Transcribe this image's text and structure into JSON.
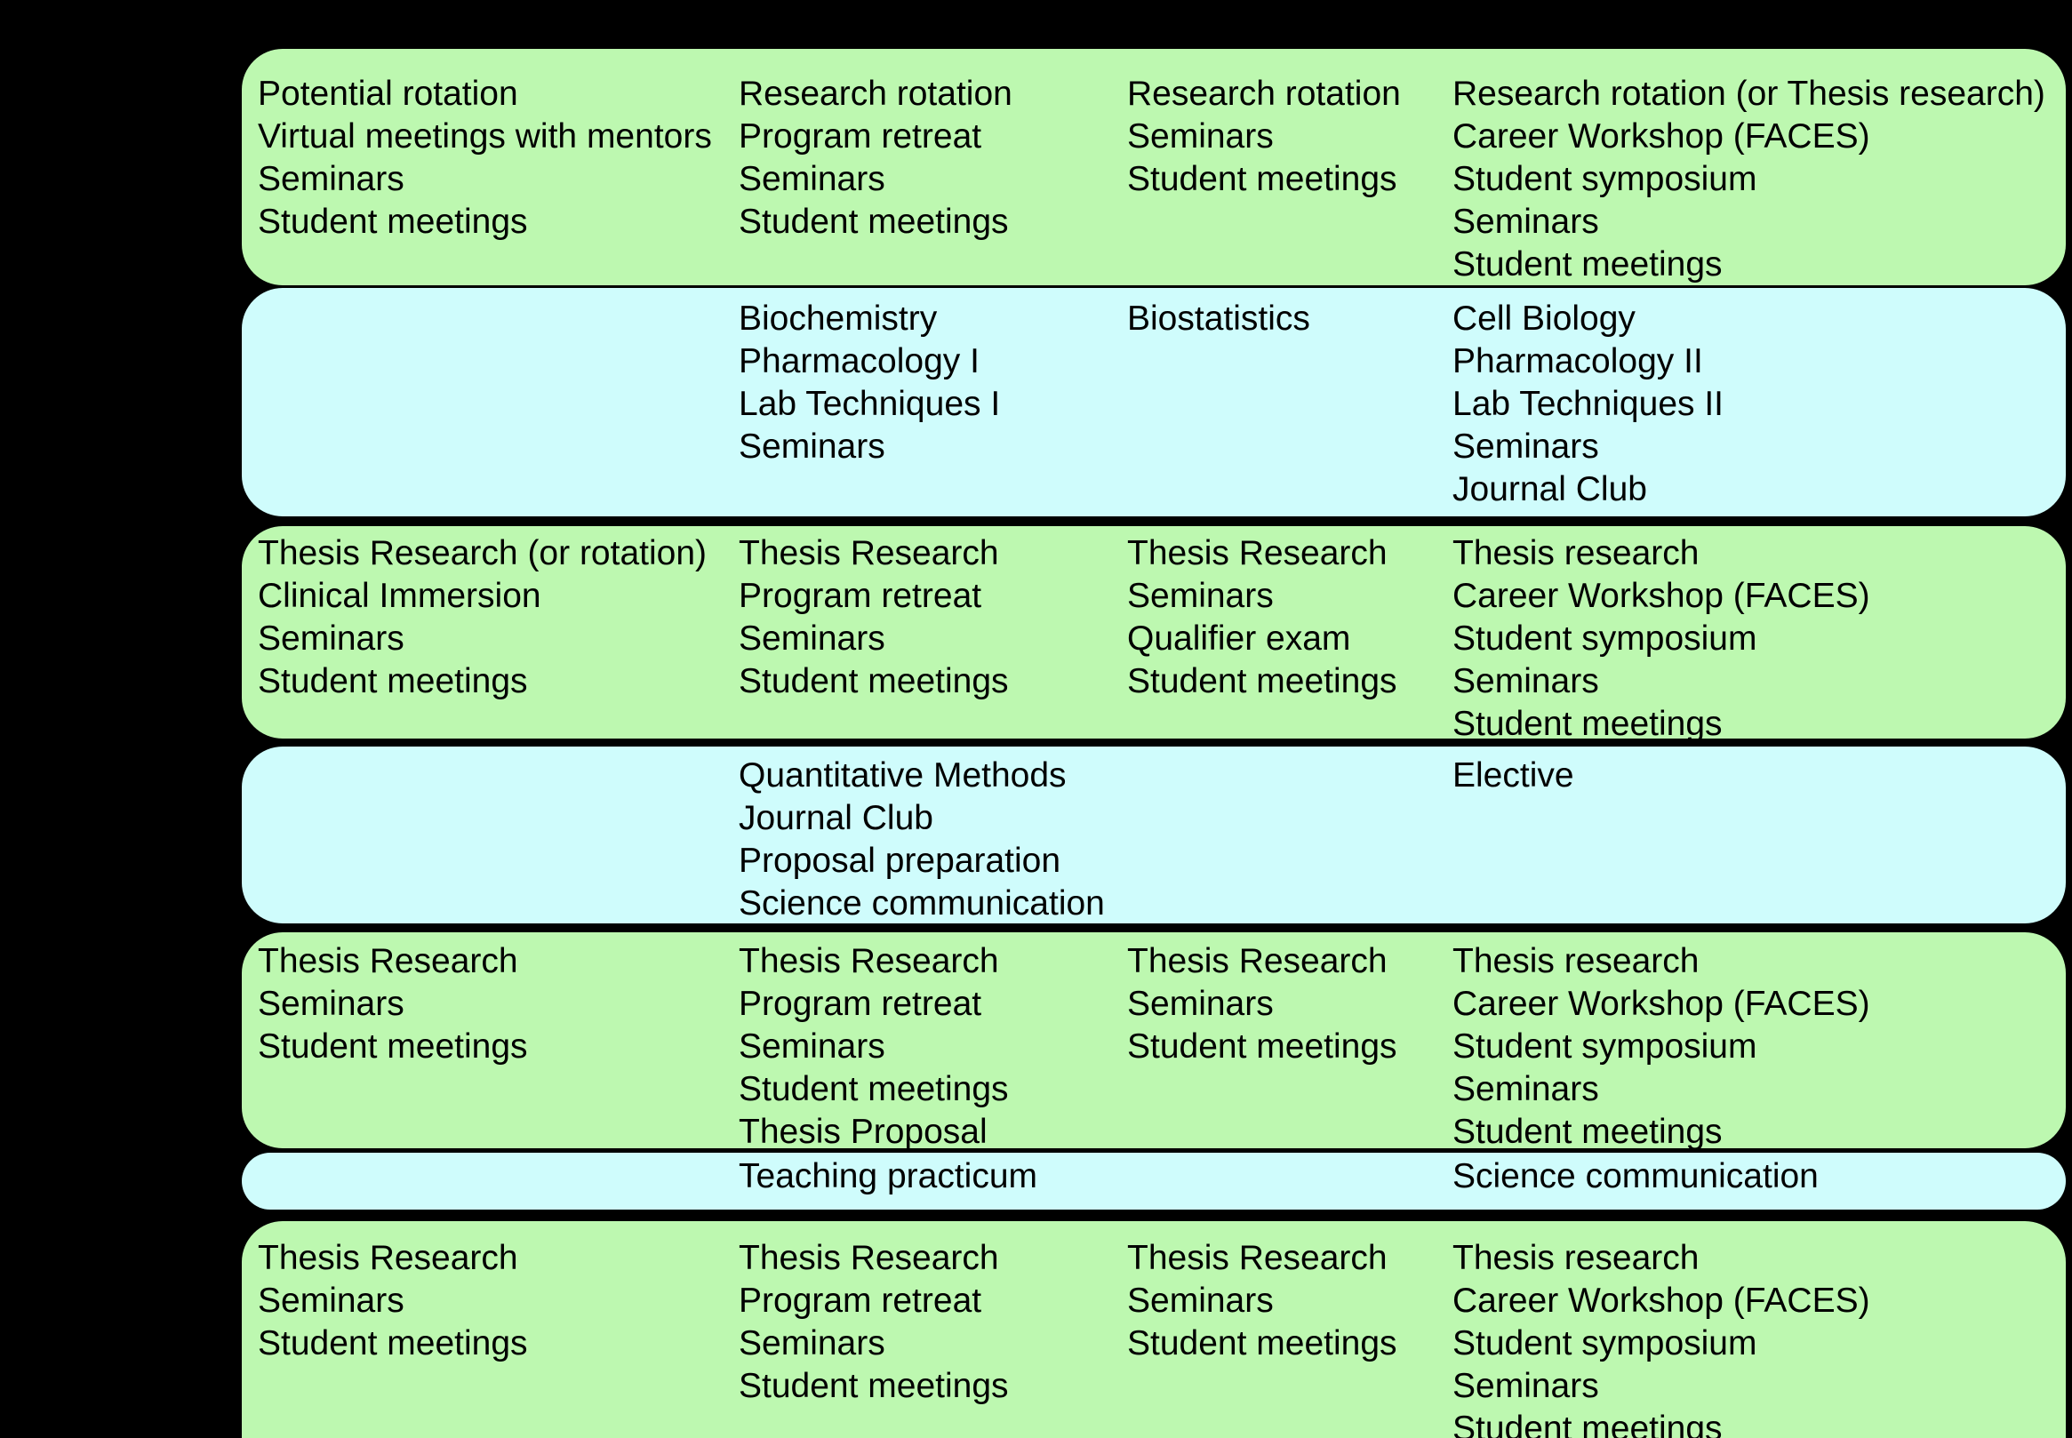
{
  "colors": {
    "background": "#000000",
    "activities_green": "#bdf8b0",
    "courses_cyan": "#cffcfc",
    "text": "#000000"
  },
  "schedule": {
    "rows": [
      {
        "type": "activities",
        "cells": {
          "c1": "Potential rotation\nVirtual meetings with mentors\nSeminars\nStudent meetings",
          "c2": "Research rotation\nProgram retreat\nSeminars\nStudent meetings",
          "c3": "Research rotation\nSeminars\nStudent meetings",
          "c4": "Research rotation (or Thesis research)\nCareer Workshop (FACES)\nStudent symposium\nSeminars\nStudent meetings"
        }
      },
      {
        "type": "courses",
        "cells": {
          "c2": "Biochemistry\nPharmacology I\nLab Techniques I\nSeminars",
          "c3": "Biostatistics",
          "c4": "Cell Biology\nPharmacology II\nLab Techniques II\nSeminars\nJournal Club"
        }
      },
      {
        "type": "activities",
        "cells": {
          "c1": "Thesis Research (or rotation)\nClinical Immersion\nSeminars\nStudent meetings",
          "c2": "Thesis Research\nProgram retreat\nSeminars\nStudent meetings",
          "c3": "Thesis Research\nSeminars\nQualifier exam\nStudent meetings",
          "c4": "Thesis research\nCareer Workshop (FACES)\nStudent symposium\nSeminars\nStudent meetings"
        }
      },
      {
        "type": "courses",
        "cells": {
          "c2": "Quantitative Methods\nJournal Club\nProposal preparation\nScience communication",
          "c4": "Elective"
        }
      },
      {
        "type": "activities",
        "cells": {
          "c1": "Thesis Research\nSeminars\nStudent meetings",
          "c2": "Thesis Research\nProgram retreat\nSeminars\nStudent meetings\nThesis Proposal",
          "c3": "Thesis Research\nSeminars\nStudent meetings",
          "c4": "Thesis research\nCareer Workshop (FACES)\nStudent symposium\nSeminars\nStudent meetings"
        }
      },
      {
        "type": "courses",
        "cells": {
          "c2": "Teaching practicum",
          "c4": "Science communication"
        }
      },
      {
        "type": "activities",
        "cells": {
          "c1": "Thesis Research\nSeminars\nStudent meetings",
          "c2": "Thesis Research\nProgram retreat\nSeminars\nStudent meetings",
          "c3": "Thesis Research\nSeminars\nStudent meetings",
          "c4": "Thesis research\nCareer Workshop (FACES)\nStudent symposium\nSeminars\nStudent meetings"
        }
      }
    ]
  }
}
